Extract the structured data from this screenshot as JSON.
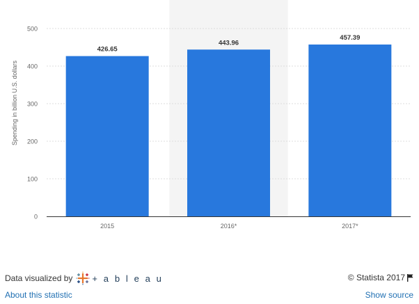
{
  "chart_data": {
    "type": "bar",
    "categories": [
      "2015",
      "2016*",
      "2017*"
    ],
    "values": [
      426.65,
      443.96,
      457.39
    ],
    "value_labels": [
      "426.65",
      "443.96",
      "457.39"
    ],
    "title": "",
    "xlabel": "",
    "ylabel": "Spending in billion U.S. dollars",
    "ylim": [
      0,
      500
    ],
    "yticks": [
      0,
      100,
      200,
      300,
      400,
      500
    ],
    "grid": true,
    "highlighted_category": "2016*",
    "colors": {
      "bar": "#2878dd",
      "highlight_band": "#f4f4f4",
      "grid": "#dcdcdc",
      "axis": "#333333",
      "tick_text": "#666666"
    }
  },
  "footer": {
    "credit_label": "Data visualized by",
    "tableau_text": "+ a b l e a u",
    "tableau_icon": "tableau-logo-icon",
    "copyright": "© Statista 2017",
    "flag_icon": "flag-icon",
    "about_label": "About this statistic",
    "source_label": "Show source"
  }
}
